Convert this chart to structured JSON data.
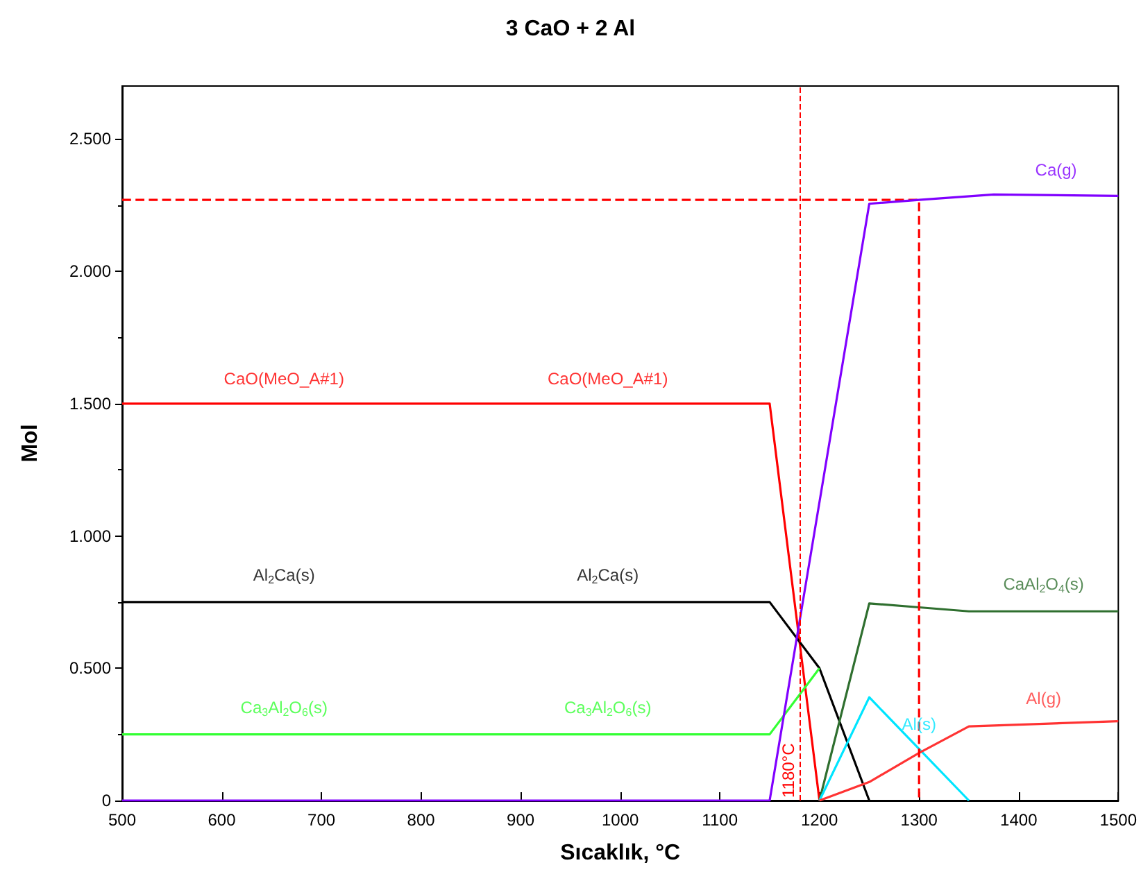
{
  "chart_data": {
    "type": "line",
    "title": "3 CaO + 2 Al",
    "xlabel": "Sıcaklık, °C",
    "ylabel": "Mol",
    "xlim": [
      500,
      1500
    ],
    "xticks": [
      500,
      600,
      700,
      800,
      900,
      1000,
      1100,
      1200,
      1300,
      1400,
      1500
    ],
    "ylim": [
      0,
      2.7
    ],
    "yticks": [
      0,
      {
        "value": 0.5,
        "label": "0.500"
      },
      {
        "value": 1,
        "label": "1.000"
      },
      {
        "value": 1.5,
        "label": "1.500"
      },
      {
        "value": 2,
        "label": "2.000"
      },
      {
        "value": 2.5,
        "label": "2.500"
      }
    ],
    "grid": false,
    "marker": "none",
    "line_style": "solid",
    "series": [
      {
        "name": "CaO(MeO_A#1)",
        "color": "#ff0000",
        "x": [
          500,
          1150,
          1200
        ],
        "values": [
          1.5,
          1.5,
          0
        ]
      },
      {
        "name": "Al$_{2}$Ca(s)",
        "color": "#000000",
        "x": [
          500,
          1150,
          1200,
          1250
        ],
        "values": [
          0.75,
          0.75,
          0.5,
          0
        ]
      },
      {
        "name": "Ca$_{3}$Al$_{2}$O$_{6}$(s)",
        "color": "#33ff33",
        "x": [
          500,
          1150,
          1200
        ],
        "values": [
          0.25,
          0.25,
          0.5
        ]
      },
      {
        "name": "CaAl$_{2}$O$_{4}$(s)",
        "color": "#2f6f2f",
        "x": [
          1200,
          1250,
          1300,
          1350,
          1500
        ],
        "values": [
          0,
          0.745,
          0.73,
          0.715,
          0.715
        ]
      },
      {
        "name": "Al(s)",
        "color": "#00e5ff",
        "x": [
          1200,
          1250,
          1350
        ],
        "values": [
          0,
          0.39,
          0
        ]
      },
      {
        "name": "Al(g)",
        "color": "#ff3333",
        "x": [
          1200,
          1250,
          1300,
          1350,
          1500
        ],
        "values": [
          0,
          0.07,
          0.18,
          0.28,
          0.3
        ]
      },
      {
        "color": "#ff0000",
        "line_style": "dashed",
        "x": [
          500,
          1300,
          1300
        ],
        "values": [
          2.27,
          2.27,
          0
        ]
      },
      {
        "name": "Ca(g)",
        "color": "#8000ff",
        "x": [
          500,
          1150,
          1250,
          1300,
          1375,
          1500
        ],
        "values": [
          0,
          0,
          2.255,
          2.27,
          2.29,
          2.285
        ]
      }
    ],
    "ref_lines": [
      {
        "axis": "x",
        "value": 1180,
        "label": "1180°C",
        "color": "#ff0000",
        "line_style": "dashed"
      }
    ]
  }
}
